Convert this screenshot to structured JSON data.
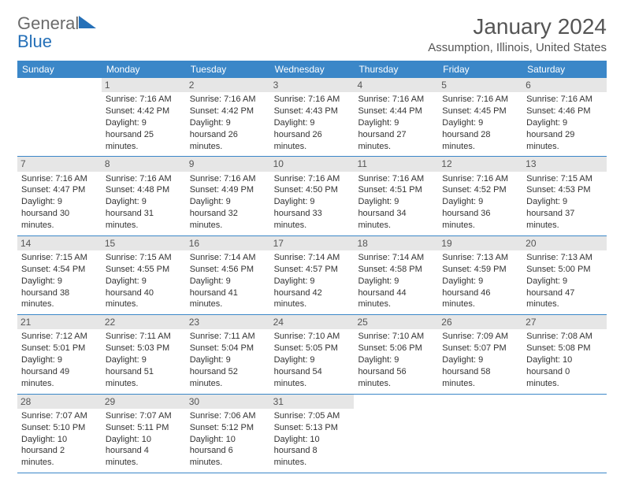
{
  "brand": {
    "line1": "General",
    "line2": "Blue"
  },
  "title": "January 2024",
  "location": "Assumption, Illinois, United States",
  "colors": {
    "header_bg": "#3b87c8",
    "header_text": "#ffffff",
    "brand_gray": "#6b6b6b",
    "brand_blue": "#2570b8",
    "daynum_bg": "#e6e6e6",
    "border": "#3b87c8",
    "text": "#333333"
  },
  "day_headers": [
    "Sunday",
    "Monday",
    "Tuesday",
    "Wednesday",
    "Thursday",
    "Friday",
    "Saturday"
  ],
  "weeks": [
    [
      {
        "blank": true
      },
      {
        "num": "1",
        "sunrise": "Sunrise: 7:16 AM",
        "sunset": "Sunset: 4:42 PM",
        "d1": "Daylight: 9 hours",
        "d2": "and 25 minutes."
      },
      {
        "num": "2",
        "sunrise": "Sunrise: 7:16 AM",
        "sunset": "Sunset: 4:42 PM",
        "d1": "Daylight: 9 hours",
        "d2": "and 26 minutes."
      },
      {
        "num": "3",
        "sunrise": "Sunrise: 7:16 AM",
        "sunset": "Sunset: 4:43 PM",
        "d1": "Daylight: 9 hours",
        "d2": "and 26 minutes."
      },
      {
        "num": "4",
        "sunrise": "Sunrise: 7:16 AM",
        "sunset": "Sunset: 4:44 PM",
        "d1": "Daylight: 9 hours",
        "d2": "and 27 minutes."
      },
      {
        "num": "5",
        "sunrise": "Sunrise: 7:16 AM",
        "sunset": "Sunset: 4:45 PM",
        "d1": "Daylight: 9 hours",
        "d2": "and 28 minutes."
      },
      {
        "num": "6",
        "sunrise": "Sunrise: 7:16 AM",
        "sunset": "Sunset: 4:46 PM",
        "d1": "Daylight: 9 hours",
        "d2": "and 29 minutes."
      }
    ],
    [
      {
        "num": "7",
        "sunrise": "Sunrise: 7:16 AM",
        "sunset": "Sunset: 4:47 PM",
        "d1": "Daylight: 9 hours",
        "d2": "and 30 minutes."
      },
      {
        "num": "8",
        "sunrise": "Sunrise: 7:16 AM",
        "sunset": "Sunset: 4:48 PM",
        "d1": "Daylight: 9 hours",
        "d2": "and 31 minutes."
      },
      {
        "num": "9",
        "sunrise": "Sunrise: 7:16 AM",
        "sunset": "Sunset: 4:49 PM",
        "d1": "Daylight: 9 hours",
        "d2": "and 32 minutes."
      },
      {
        "num": "10",
        "sunrise": "Sunrise: 7:16 AM",
        "sunset": "Sunset: 4:50 PM",
        "d1": "Daylight: 9 hours",
        "d2": "and 33 minutes."
      },
      {
        "num": "11",
        "sunrise": "Sunrise: 7:16 AM",
        "sunset": "Sunset: 4:51 PM",
        "d1": "Daylight: 9 hours",
        "d2": "and 34 minutes."
      },
      {
        "num": "12",
        "sunrise": "Sunrise: 7:16 AM",
        "sunset": "Sunset: 4:52 PM",
        "d1": "Daylight: 9 hours",
        "d2": "and 36 minutes."
      },
      {
        "num": "13",
        "sunrise": "Sunrise: 7:15 AM",
        "sunset": "Sunset: 4:53 PM",
        "d1": "Daylight: 9 hours",
        "d2": "and 37 minutes."
      }
    ],
    [
      {
        "num": "14",
        "sunrise": "Sunrise: 7:15 AM",
        "sunset": "Sunset: 4:54 PM",
        "d1": "Daylight: 9 hours",
        "d2": "and 38 minutes."
      },
      {
        "num": "15",
        "sunrise": "Sunrise: 7:15 AM",
        "sunset": "Sunset: 4:55 PM",
        "d1": "Daylight: 9 hours",
        "d2": "and 40 minutes."
      },
      {
        "num": "16",
        "sunrise": "Sunrise: 7:14 AM",
        "sunset": "Sunset: 4:56 PM",
        "d1": "Daylight: 9 hours",
        "d2": "and 41 minutes."
      },
      {
        "num": "17",
        "sunrise": "Sunrise: 7:14 AM",
        "sunset": "Sunset: 4:57 PM",
        "d1": "Daylight: 9 hours",
        "d2": "and 42 minutes."
      },
      {
        "num": "18",
        "sunrise": "Sunrise: 7:14 AM",
        "sunset": "Sunset: 4:58 PM",
        "d1": "Daylight: 9 hours",
        "d2": "and 44 minutes."
      },
      {
        "num": "19",
        "sunrise": "Sunrise: 7:13 AM",
        "sunset": "Sunset: 4:59 PM",
        "d1": "Daylight: 9 hours",
        "d2": "and 46 minutes."
      },
      {
        "num": "20",
        "sunrise": "Sunrise: 7:13 AM",
        "sunset": "Sunset: 5:00 PM",
        "d1": "Daylight: 9 hours",
        "d2": "and 47 minutes."
      }
    ],
    [
      {
        "num": "21",
        "sunrise": "Sunrise: 7:12 AM",
        "sunset": "Sunset: 5:01 PM",
        "d1": "Daylight: 9 hours",
        "d2": "and 49 minutes."
      },
      {
        "num": "22",
        "sunrise": "Sunrise: 7:11 AM",
        "sunset": "Sunset: 5:03 PM",
        "d1": "Daylight: 9 hours",
        "d2": "and 51 minutes."
      },
      {
        "num": "23",
        "sunrise": "Sunrise: 7:11 AM",
        "sunset": "Sunset: 5:04 PM",
        "d1": "Daylight: 9 hours",
        "d2": "and 52 minutes."
      },
      {
        "num": "24",
        "sunrise": "Sunrise: 7:10 AM",
        "sunset": "Sunset: 5:05 PM",
        "d1": "Daylight: 9 hours",
        "d2": "and 54 minutes."
      },
      {
        "num": "25",
        "sunrise": "Sunrise: 7:10 AM",
        "sunset": "Sunset: 5:06 PM",
        "d1": "Daylight: 9 hours",
        "d2": "and 56 minutes."
      },
      {
        "num": "26",
        "sunrise": "Sunrise: 7:09 AM",
        "sunset": "Sunset: 5:07 PM",
        "d1": "Daylight: 9 hours",
        "d2": "and 58 minutes."
      },
      {
        "num": "27",
        "sunrise": "Sunrise: 7:08 AM",
        "sunset": "Sunset: 5:08 PM",
        "d1": "Daylight: 10 hours",
        "d2": "and 0 minutes."
      }
    ],
    [
      {
        "num": "28",
        "sunrise": "Sunrise: 7:07 AM",
        "sunset": "Sunset: 5:10 PM",
        "d1": "Daylight: 10 hours",
        "d2": "and 2 minutes."
      },
      {
        "num": "29",
        "sunrise": "Sunrise: 7:07 AM",
        "sunset": "Sunset: 5:11 PM",
        "d1": "Daylight: 10 hours",
        "d2": "and 4 minutes."
      },
      {
        "num": "30",
        "sunrise": "Sunrise: 7:06 AM",
        "sunset": "Sunset: 5:12 PM",
        "d1": "Daylight: 10 hours",
        "d2": "and 6 minutes."
      },
      {
        "num": "31",
        "sunrise": "Sunrise: 7:05 AM",
        "sunset": "Sunset: 5:13 PM",
        "d1": "Daylight: 10 hours",
        "d2": "and 8 minutes."
      },
      {
        "blank": true
      },
      {
        "blank": true
      },
      {
        "blank": true
      }
    ]
  ]
}
